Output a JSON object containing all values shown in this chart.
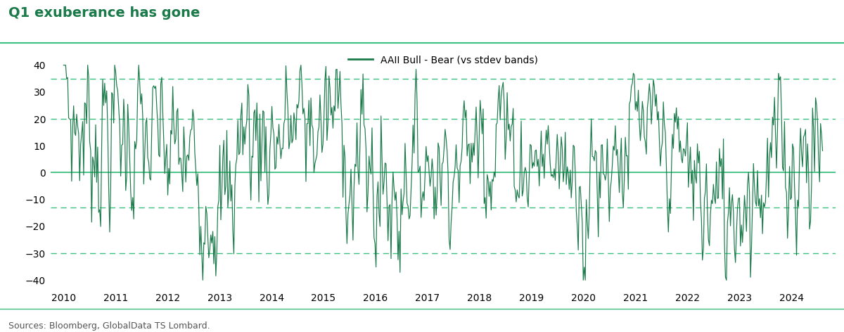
{
  "title": "Q1 exuberance has gone",
  "legend_label": "AAII Bull - Bear (vs stdev bands)",
  "source": "Sources: Bloomberg, GlobalData TS Lombard.",
  "line_color": "#1a7a4a",
  "title_color": "#1a7a4a",
  "separator_color": "#3dbf7f",
  "background_color": "#ffffff",
  "ylim": [
    -42,
    42
  ],
  "yticks": [
    -40,
    -30,
    -20,
    -10,
    0,
    10,
    20,
    30,
    40
  ],
  "hline_solid_0": 0,
  "hline_solid_color": "#3dbf7f",
  "hlines_dashed": [
    35,
    20,
    -13,
    -30
  ],
  "hlines_dashed_color": "#3dbf7f",
  "xmin": 2009.75,
  "xmax": 2024.85
}
